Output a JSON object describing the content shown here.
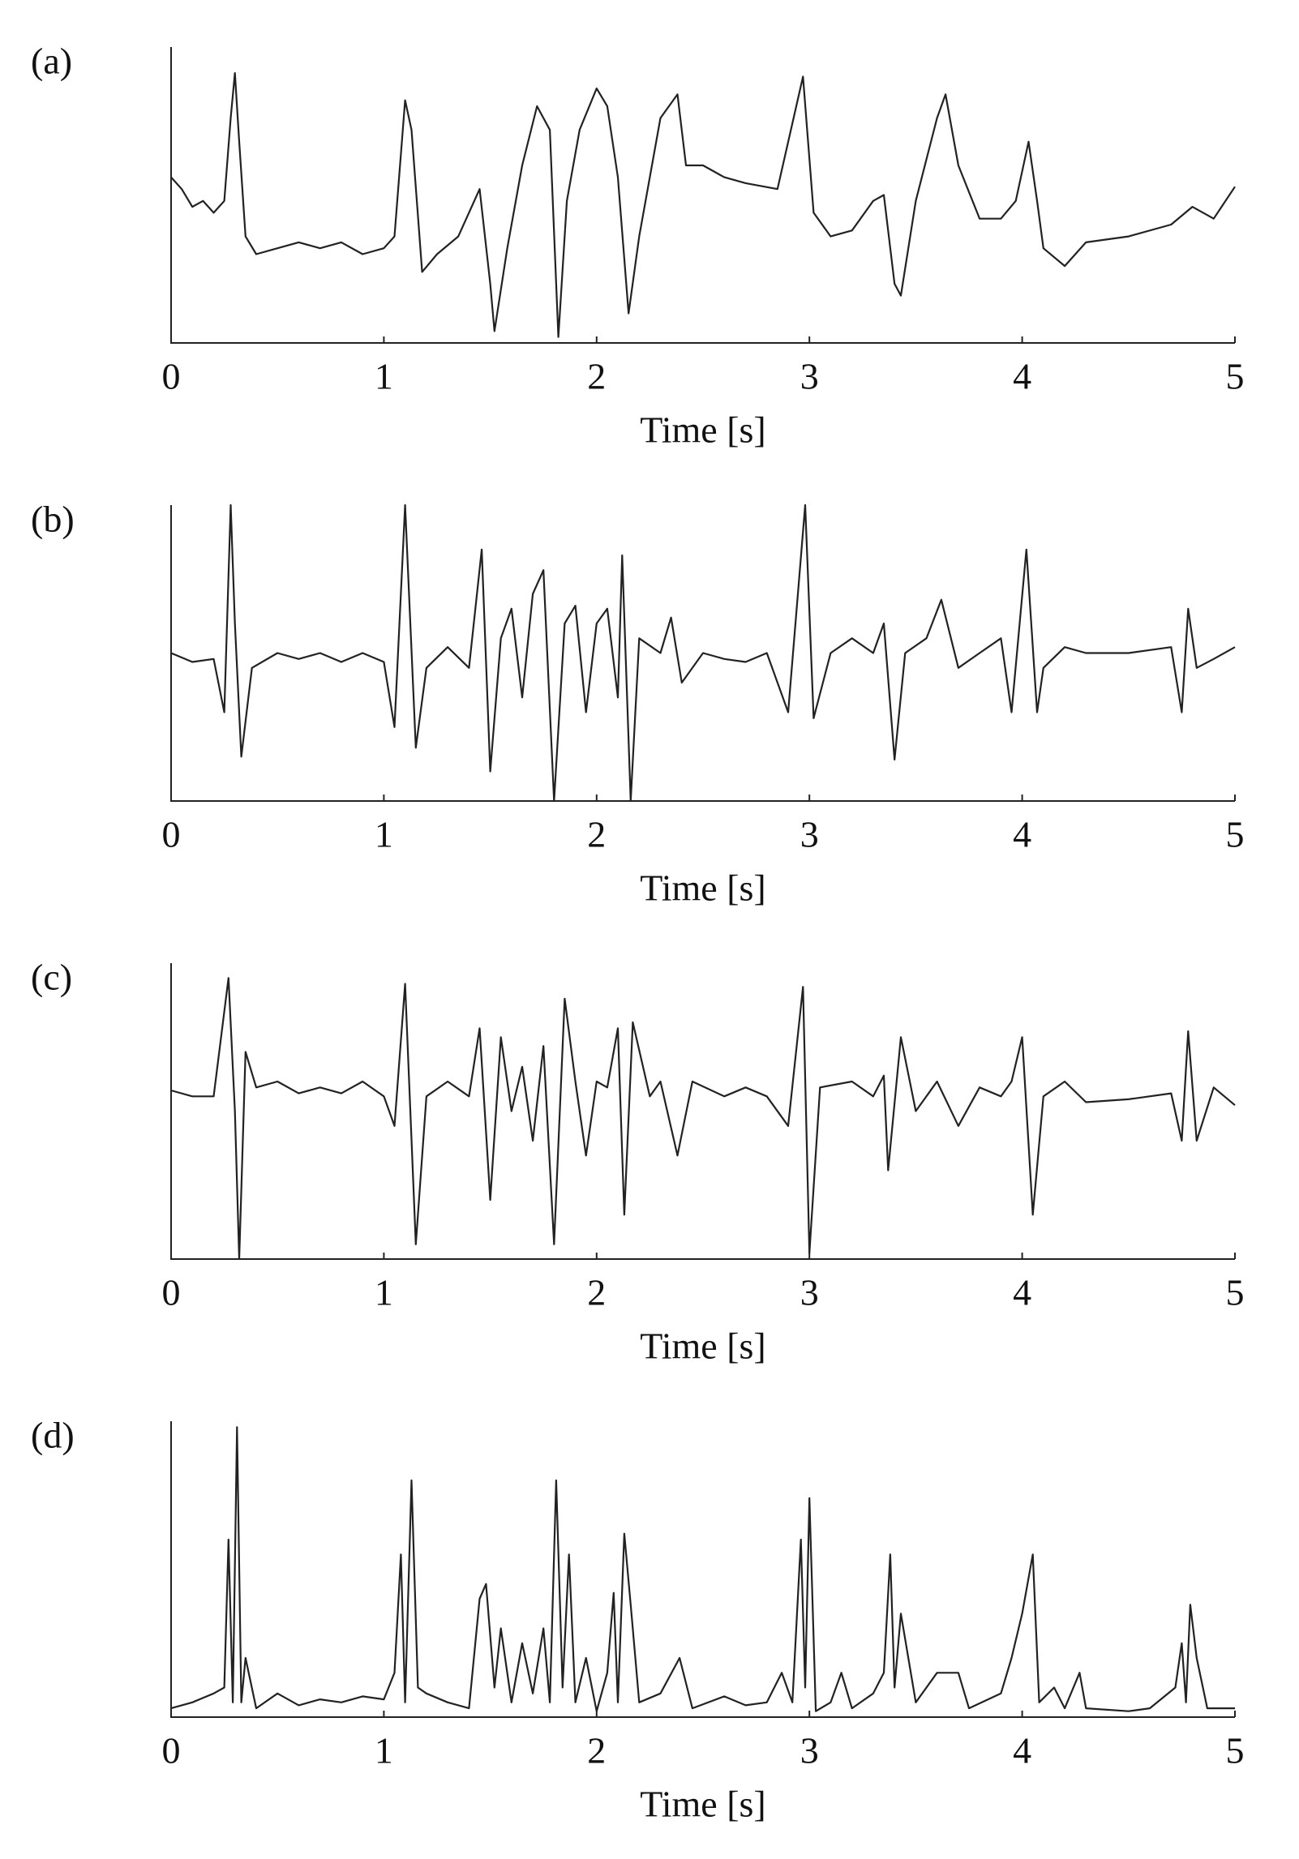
{
  "chart_data": [
    {
      "type": "line",
      "label": "(a)",
      "xlabel": "Time [s]",
      "xlim": [
        0,
        5
      ],
      "ylim": [
        0,
        1
      ],
      "xticks": [
        0,
        1,
        2,
        3,
        4,
        5
      ],
      "color": "#222",
      "x": [
        0,
        0.05,
        0.1,
        0.15,
        0.2,
        0.25,
        0.28,
        0.3,
        0.32,
        0.35,
        0.4,
        0.5,
        0.6,
        0.7,
        0.8,
        0.9,
        1.0,
        1.05,
        1.1,
        1.13,
        1.18,
        1.25,
        1.35,
        1.45,
        1.5,
        1.52,
        1.58,
        1.65,
        1.72,
        1.78,
        1.82,
        1.86,
        1.92,
        2.0,
        2.05,
        2.1,
        2.15,
        2.2,
        2.3,
        2.38,
        2.42,
        2.5,
        2.6,
        2.7,
        2.85,
        2.97,
        3.02,
        3.1,
        3.2,
        3.3,
        3.35,
        3.4,
        3.43,
        3.5,
        3.6,
        3.64,
        3.7,
        3.8,
        3.9,
        3.97,
        4.03,
        4.07,
        4.1,
        4.2,
        4.3,
        4.5,
        4.7,
        4.8,
        4.9,
        5.0
      ],
      "values": [
        0.56,
        0.52,
        0.46,
        0.48,
        0.44,
        0.48,
        0.76,
        0.912,
        0.68,
        0.36,
        0.3,
        0.32,
        0.34,
        0.32,
        0.34,
        0.3,
        0.32,
        0.36,
        0.82,
        0.72,
        0.24,
        0.3,
        0.36,
        0.52,
        0.2,
        0.04,
        0.32,
        0.6,
        0.8,
        0.72,
        0.02,
        0.48,
        0.72,
        0.86,
        0.8,
        0.56,
        0.1,
        0.36,
        0.76,
        0.84,
        0.6,
        0.6,
        0.56,
        0.54,
        0.52,
        0.9,
        0.44,
        0.36,
        0.38,
        0.48,
        0.5,
        0.2,
        0.16,
        0.48,
        0.76,
        0.84,
        0.6,
        0.42,
        0.42,
        0.48,
        0.68,
        0.48,
        0.32,
        0.26,
        0.34,
        0.36,
        0.4,
        0.46,
        0.42,
        0.528
      ]
    },
    {
      "type": "line",
      "label": "(b)",
      "xlabel": "Time [s]",
      "xlim": [
        0,
        5
      ],
      "ylim": [
        0,
        1
      ],
      "xticks": [
        0,
        1,
        2,
        3,
        4,
        5
      ],
      "color": "#222",
      "x": [
        0,
        0.1,
        0.2,
        0.25,
        0.28,
        0.3,
        0.33,
        0.38,
        0.5,
        0.6,
        0.7,
        0.8,
        0.9,
        1.0,
        1.05,
        1.1,
        1.15,
        1.2,
        1.3,
        1.4,
        1.46,
        1.5,
        1.55,
        1.6,
        1.65,
        1.7,
        1.75,
        1.8,
        1.85,
        1.9,
        1.95,
        2.0,
        2.05,
        2.1,
        2.12,
        2.16,
        2.2,
        2.3,
        2.35,
        2.4,
        2.5,
        2.6,
        2.7,
        2.8,
        2.9,
        2.98,
        3.02,
        3.1,
        3.2,
        3.3,
        3.35,
        3.4,
        3.45,
        3.55,
        3.62,
        3.7,
        3.8,
        3.9,
        3.95,
        4.02,
        4.07,
        4.1,
        4.2,
        4.3,
        4.5,
        4.7,
        4.75,
        4.78,
        4.82,
        4.9,
        5.0
      ],
      "values": [
        0.5,
        0.47,
        0.48,
        0.3,
        1.0,
        0.6,
        0.15,
        0.45,
        0.5,
        0.48,
        0.5,
        0.47,
        0.5,
        0.47,
        0.25,
        1.0,
        0.18,
        0.45,
        0.52,
        0.45,
        0.85,
        0.1,
        0.55,
        0.65,
        0.35,
        0.7,
        0.78,
        0.0,
        0.6,
        0.66,
        0.3,
        0.6,
        0.65,
        0.35,
        0.83,
        0.0,
        0.55,
        0.5,
        0.62,
        0.4,
        0.5,
        0.48,
        0.47,
        0.5,
        0.3,
        1.0,
        0.28,
        0.5,
        0.55,
        0.5,
        0.6,
        0.14,
        0.5,
        0.55,
        0.68,
        0.45,
        0.5,
        0.55,
        0.3,
        0.85,
        0.3,
        0.45,
        0.52,
        0.5,
        0.5,
        0.52,
        0.3,
        0.65,
        0.45,
        0.48,
        0.52
      ]
    },
    {
      "type": "line",
      "label": "(c)",
      "xlabel": "Time [s]",
      "xlim": [
        0,
        5
      ],
      "ylim": [
        0,
        1
      ],
      "xticks": [
        0,
        1,
        2,
        3,
        4,
        5
      ],
      "color": "#222",
      "x": [
        0,
        0.1,
        0.2,
        0.27,
        0.3,
        0.32,
        0.35,
        0.4,
        0.5,
        0.6,
        0.7,
        0.8,
        0.9,
        1.0,
        1.05,
        1.1,
        1.15,
        1.2,
        1.3,
        1.4,
        1.45,
        1.5,
        1.55,
        1.6,
        1.65,
        1.7,
        1.75,
        1.8,
        1.85,
        1.9,
        1.95,
        2.0,
        2.05,
        2.1,
        2.13,
        2.17,
        2.25,
        2.3,
        2.38,
        2.45,
        2.6,
        2.7,
        2.8,
        2.9,
        2.97,
        3.0,
        3.05,
        3.2,
        3.3,
        3.35,
        3.37,
        3.43,
        3.5,
        3.6,
        3.7,
        3.8,
        3.9,
        3.95,
        4.0,
        4.05,
        4.1,
        4.2,
        4.3,
        4.5,
        4.7,
        4.75,
        4.78,
        4.82,
        4.9,
        5.0
      ],
      "values": [
        0.57,
        0.55,
        0.55,
        0.95,
        0.5,
        0.0,
        0.7,
        0.58,
        0.6,
        0.56,
        0.58,
        0.56,
        0.6,
        0.55,
        0.45,
        0.93,
        0.05,
        0.55,
        0.6,
        0.55,
        0.78,
        0.2,
        0.75,
        0.5,
        0.65,
        0.4,
        0.72,
        0.05,
        0.88,
        0.6,
        0.35,
        0.6,
        0.58,
        0.78,
        0.15,
        0.8,
        0.55,
        0.6,
        0.35,
        0.6,
        0.55,
        0.58,
        0.55,
        0.45,
        0.92,
        0.02,
        0.58,
        0.6,
        0.55,
        0.62,
        0.3,
        0.75,
        0.5,
        0.6,
        0.45,
        0.58,
        0.55,
        0.6,
        0.75,
        0.15,
        0.55,
        0.6,
        0.53,
        0.54,
        0.56,
        0.4,
        0.77,
        0.4,
        0.58,
        0.52
      ]
    },
    {
      "type": "line",
      "label": "(d)",
      "xlabel": "Time [s]",
      "xlim": [
        0,
        5
      ],
      "ylim": [
        0,
        1
      ],
      "xticks": [
        0,
        1,
        2,
        3,
        4,
        5
      ],
      "color": "#222",
      "x": [
        0,
        0.1,
        0.2,
        0.25,
        0.27,
        0.29,
        0.31,
        0.33,
        0.35,
        0.4,
        0.5,
        0.6,
        0.7,
        0.8,
        0.9,
        1.0,
        1.05,
        1.08,
        1.1,
        1.13,
        1.16,
        1.2,
        1.3,
        1.4,
        1.45,
        1.48,
        1.52,
        1.55,
        1.6,
        1.65,
        1.7,
        1.75,
        1.78,
        1.81,
        1.84,
        1.87,
        1.9,
        1.95,
        2.0,
        2.05,
        2.08,
        2.1,
        2.13,
        2.16,
        2.2,
        2.3,
        2.39,
        2.45,
        2.6,
        2.7,
        2.8,
        2.87,
        2.92,
        2.96,
        2.98,
        3.0,
        3.03,
        3.1,
        3.15,
        3.2,
        3.3,
        3.35,
        3.38,
        3.4,
        3.43,
        3.5,
        3.6,
        3.7,
        3.75,
        3.9,
        3.95,
        4.0,
        4.05,
        4.08,
        4.15,
        4.2,
        4.27,
        4.3,
        4.5,
        4.6,
        4.72,
        4.75,
        4.77,
        4.79,
        4.82,
        4.87,
        5.0
      ],
      "values": [
        0.03,
        0.05,
        0.08,
        0.1,
        0.6,
        0.05,
        0.98,
        0.05,
        0.2,
        0.03,
        0.08,
        0.04,
        0.06,
        0.05,
        0.07,
        0.06,
        0.15,
        0.55,
        0.05,
        0.8,
        0.1,
        0.08,
        0.05,
        0.03,
        0.4,
        0.45,
        0.1,
        0.3,
        0.05,
        0.25,
        0.08,
        0.3,
        0.05,
        0.8,
        0.1,
        0.55,
        0.05,
        0.2,
        0.02,
        0.15,
        0.42,
        0.05,
        0.62,
        0.38,
        0.05,
        0.08,
        0.2,
        0.03,
        0.07,
        0.04,
        0.05,
        0.15,
        0.05,
        0.6,
        0.1,
        0.74,
        0.02,
        0.05,
        0.15,
        0.03,
        0.08,
        0.15,
        0.55,
        0.1,
        0.35,
        0.05,
        0.15,
        0.15,
        0.03,
        0.08,
        0.2,
        0.35,
        0.55,
        0.05,
        0.1,
        0.03,
        0.15,
        0.03,
        0.02,
        0.03,
        0.1,
        0.25,
        0.05,
        0.38,
        0.2,
        0.03,
        0.03
      ]
    }
  ]
}
